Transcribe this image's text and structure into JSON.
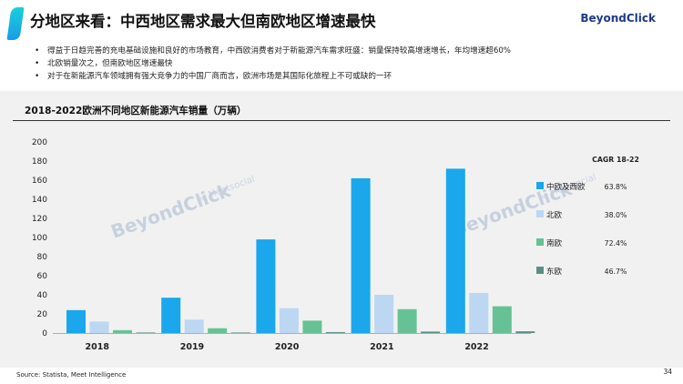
{
  "page": {
    "title": "分地区来看：中西地区需求最大但南欧地区增速最快",
    "brand": "BeyondClick",
    "bullets": [
      "得益于日趋完善的充电基础设施和良好的市场教育，中西欧消费者对于新能源汽车需求旺盛：销量保持较高增速增长，年均增速超60%",
      "北欧销量次之，但南欧地区增速最快",
      "对于在新能源汽车领域拥有强大竞争力的中国厂商而言，欧洲市场是其国际化旅程上不可或缺的一环"
    ],
    "source": "Source: Statista, Meet Intelligence",
    "page_number": "34",
    "watermark_main": "BeyondClick",
    "watermark_by": "by",
    "watermark_partner": "Meetsocial"
  },
  "colors": {
    "accent": "#1a9be8",
    "series": [
      "#1aa7ec",
      "#bcd7f1",
      "#66c295",
      "#5b8f86"
    ]
  },
  "chart_data": {
    "type": "bar",
    "title": "2018-2022欧洲不同地区新能源汽车销量（万辆）",
    "categories": [
      "2018",
      "2019",
      "2020",
      "2021",
      "2022"
    ],
    "ylim": [
      0,
      200
    ],
    "yticks": [
      0,
      20,
      40,
      60,
      80,
      100,
      120,
      140,
      160,
      180,
      200
    ],
    "grid": false,
    "legend_position": "right",
    "cagr_header": "CAGR 18-22",
    "series": [
      {
        "name": "中欧及西欧",
        "values": [
          24,
          37,
          98,
          162,
          172
        ],
        "cagr": "63.8%"
      },
      {
        "name": "北欧",
        "values": [
          12,
          14,
          26,
          40,
          42
        ],
        "cagr": "38.0%"
      },
      {
        "name": "南欧",
        "values": [
          3,
          5,
          13,
          25,
          28
        ],
        "cagr": "72.4%"
      },
      {
        "name": "东欧",
        "values": [
          0.4,
          0.5,
          1,
          1.5,
          1.8
        ],
        "cagr": "46.7%"
      }
    ]
  }
}
